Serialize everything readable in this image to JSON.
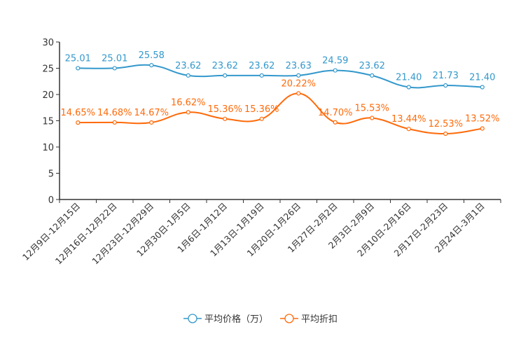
{
  "chart_data": {
    "type": "line",
    "title": "",
    "xlabel": "",
    "ylabel": "",
    "ylim": [
      0,
      30
    ],
    "yticks": [
      0,
      5,
      10,
      15,
      20,
      25,
      30
    ],
    "grid": false,
    "legend_position": "bottom",
    "categories": [
      "12月9日-12月15日",
      "12月16日-12月22日",
      "12月23日-12月29日",
      "12月30日-1月5日",
      "1月6日-1月12日",
      "1月13日-1月19日",
      "1月20日-1月26日",
      "1月27日-2月2日",
      "2月3日-2月9日",
      "2月10日-2月16日",
      "2月17日-2月23日",
      "2月24日-3月1日"
    ],
    "series": [
      {
        "name": "平均价格（万）",
        "color": "#3398cc",
        "values": [
          25.01,
          25.01,
          25.58,
          23.62,
          23.62,
          23.62,
          23.63,
          24.59,
          23.62,
          21.4,
          21.73,
          21.4
        ],
        "labels": [
          "25.01",
          "25.01",
          "25.58",
          "23.62",
          "23.62",
          "23.62",
          "23.63",
          "24.59",
          "23.62",
          "21.40",
          "21.73",
          "21.40"
        ]
      },
      {
        "name": "平均折扣",
        "color": "#ff6a0a",
        "values": [
          14.65,
          14.68,
          14.67,
          16.62,
          15.36,
          15.36,
          20.22,
          14.7,
          15.53,
          13.44,
          12.53,
          13.52
        ],
        "labels": [
          "14.65%",
          "14.68%",
          "14.67%",
          "16.62%",
          "15.36%",
          "15.36%",
          "20.22%",
          "14.70%",
          "15.53%",
          "13.44%",
          "12.53%",
          "13.52%"
        ]
      }
    ]
  }
}
